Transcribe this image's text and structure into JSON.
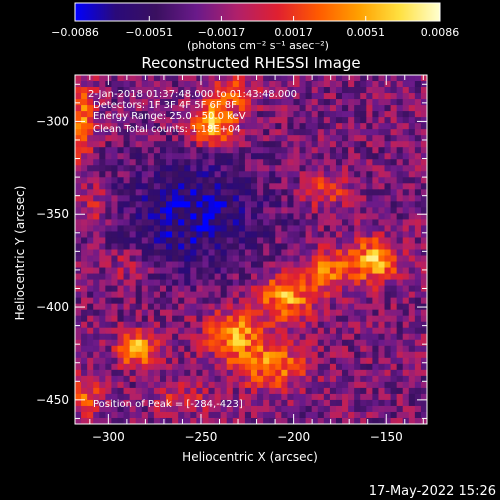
{
  "chart_data": {
    "type": "heatmap",
    "title": "Reconstructed RHESSI Image",
    "xlabel": "Heliocentric X (arcsec)",
    "ylabel": "Heliocentric Y (arcsec)",
    "xlim": [
      -318,
      -128
    ],
    "ylim": [
      -463,
      -275
    ],
    "x_ticks": [
      -300,
      -250,
      -200,
      -150
    ],
    "y_ticks": [
      -300,
      -350,
      -400,
      -450
    ],
    "colorbar": {
      "min": -0.0086,
      "max": 0.0086,
      "ticks": [
        "−0.0086",
        "−0.0051",
        "−0.0017",
        "0.0017",
        "0.0051",
        "0.0086"
      ],
      "unit_label": "(photons cm⁻² s⁻¹ asec⁻²)",
      "colors": [
        "#0000ff",
        "#2a0a7a",
        "#3a1060",
        "#6a1a8a",
        "#b0206a",
        "#e02030",
        "#ff5a00",
        "#ffa000",
        "#ffe040",
        "#ffffd0"
      ]
    },
    "annotations": [
      "2-Jan-2018 01:37:48.000 to 01:43:48.000",
      "Detectors: 1F 3F 4F 5F 6F 8F",
      "Energy Range: 25.0 - 50.0 keV",
      "Clean    Total counts: 1.18E+04"
    ],
    "peak_label": "Position of Peak = [-284,-423]",
    "sources": [
      {
        "x": -244,
        "y": -301,
        "amp": 0.0086,
        "sx": 9,
        "sy": 8
      },
      {
        "x": -315,
        "y": -300,
        "amp": 0.006,
        "sx": 6,
        "sy": 14
      },
      {
        "x": -308,
        "y": -345,
        "amp": 0.003,
        "sx": 6,
        "sy": 9
      },
      {
        "x": -183,
        "y": -337,
        "amp": 0.004,
        "sx": 9,
        "sy": 7
      },
      {
        "x": -157,
        "y": -375,
        "amp": 0.0082,
        "sx": 9,
        "sy": 8
      },
      {
        "x": -182,
        "y": -380,
        "amp": 0.006,
        "sx": 9,
        "sy": 8
      },
      {
        "x": -204,
        "y": -394,
        "amp": 0.0075,
        "sx": 10,
        "sy": 9
      },
      {
        "x": -232,
        "y": -415,
        "amp": 0.007,
        "sx": 11,
        "sy": 9
      },
      {
        "x": -212,
        "y": -432,
        "amp": 0.006,
        "sx": 13,
        "sy": 9
      },
      {
        "x": -284,
        "y": -423,
        "amp": 0.0086,
        "sx": 7,
        "sy": 6
      },
      {
        "x": -312,
        "y": -447,
        "amp": 0.0045,
        "sx": 6,
        "sy": 8
      },
      {
        "x": -290,
        "y": -378,
        "amp": 0.0028,
        "sx": 8,
        "sy": 6
      },
      {
        "x": -260,
        "y": -450,
        "amp": 0.003,
        "sx": 10,
        "sy": 6
      },
      {
        "x": -232,
        "y": -285,
        "amp": 0.005,
        "sx": 8,
        "sy": 6
      }
    ],
    "background_level": -0.0025,
    "grid_size": 58
  },
  "timestamp": "17-May-2022 15:26"
}
